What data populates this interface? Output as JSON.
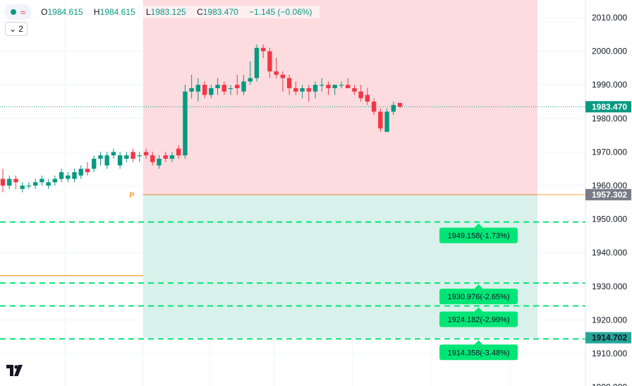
{
  "legend": {
    "o_label": "O",
    "o_value": "1984.615",
    "h_label": "H",
    "h_value": "1984.615",
    "l_label": "L",
    "l_value": "1983.125",
    "c_label": "C",
    "c_value": "1983.470",
    "change": "−1.145 (−0.06%)",
    "collapse_count": "2"
  },
  "colors": {
    "up": "#089981",
    "down": "#f23645",
    "loss_zone": "#fcdcdf",
    "profit_zone": "#d8f1ea",
    "target_line": "#00e676",
    "orange_line": "#f7a23a",
    "price_tag": "#089981",
    "grid": "#f0f3fa"
  },
  "chart_data": {
    "type": "candlestick",
    "y_axis": {
      "range": [
        1900,
        2014
      ],
      "ticks": [
        1910,
        1920,
        1930,
        1940,
        1950,
        1960,
        1970,
        1980,
        1990,
        2000,
        2010
      ],
      "tick_labels": [
        "1910.000",
        "1920.000",
        "1930.000",
        "1940.000",
        "1950.000",
        "1960.000",
        "1970.000",
        "1980.000",
        "1990.000",
        "2000.000",
        "2010.000"
      ],
      "partial_bottom_label": "1900.000",
      "partial_bottom_value": 1900
    },
    "candles": [
      [
        1962,
        1965,
        1958,
        1960
      ],
      [
        1960,
        1963,
        1959,
        1962
      ],
      [
        1962,
        1963,
        1959,
        1961
      ],
      [
        1959,
        1961,
        1958,
        1960
      ],
      [
        1960,
        1961,
        1959,
        1960
      ],
      [
        1960,
        1962,
        1959,
        1961
      ],
      [
        1961,
        1963,
        1960,
        1962
      ],
      [
        1960,
        1962,
        1959,
        1961
      ],
      [
        1961,
        1963,
        1960,
        1962
      ],
      [
        1962,
        1965,
        1961,
        1964
      ],
      [
        1962,
        1964,
        1961,
        1963
      ],
      [
        1962,
        1965,
        1961,
        1964
      ],
      [
        1963,
        1966,
        1962,
        1965
      ],
      [
        1965,
        1967,
        1963,
        1964
      ],
      [
        1965,
        1969,
        1964,
        1968
      ],
      [
        1968,
        1970,
        1966,
        1969
      ],
      [
        1966,
        1970,
        1965,
        1969
      ],
      [
        1969,
        1971,
        1968,
        1970
      ],
      [
        1966,
        1970,
        1965,
        1969
      ],
      [
        1968,
        1970,
        1967,
        1969
      ],
      [
        1970,
        1971,
        1967,
        1968
      ],
      [
        1969,
        1970,
        1967,
        1969
      ],
      [
        1970,
        1971,
        1968,
        1969
      ],
      [
        1969,
        1970,
        1966,
        1967
      ],
      [
        1966,
        1969,
        1965,
        1968
      ],
      [
        1969,
        1970,
        1967,
        1968
      ],
      [
        1968,
        1970,
        1967,
        1969
      ],
      [
        1971,
        1972,
        1968,
        1969
      ],
      [
        1969,
        1990,
        1968,
        1988
      ],
      [
        1988,
        1993,
        1986,
        1989
      ],
      [
        1988,
        1992,
        1985,
        1990
      ],
      [
        1990,
        1991,
        1986,
        1987
      ],
      [
        1987,
        1990,
        1986,
        1989
      ],
      [
        1989,
        1992,
        1987,
        1990
      ],
      [
        1990,
        1991,
        1987,
        1988
      ],
      [
        1989,
        1990,
        1987,
        1989
      ],
      [
        1990,
        1993,
        1987,
        1989
      ],
      [
        1988,
        1993,
        1987,
        1991
      ],
      [
        1991,
        1997,
        1990,
        1992
      ],
      [
        1992,
        2002,
        1991,
        2001
      ],
      [
        2001,
        2002,
        1998,
        2000
      ],
      [
        2000,
        2001,
        1992,
        1994
      ],
      [
        1994,
        1998,
        1992,
        1993
      ],
      [
        1993,
        1994,
        1988,
        1992
      ],
      [
        1992,
        1993,
        1987,
        1989
      ],
      [
        1989,
        1991,
        1987,
        1988
      ],
      [
        1988,
        1990,
        1986,
        1989
      ],
      [
        1989,
        1990,
        1985,
        1988
      ],
      [
        1988,
        1991,
        1986,
        1990
      ],
      [
        1990,
        1992,
        1988,
        1990
      ],
      [
        1990,
        1991,
        1987,
        1989
      ],
      [
        1989,
        1990,
        1987,
        1990
      ],
      [
        1990,
        1991,
        1989,
        1990
      ],
      [
        1990,
        1992,
        1989,
        1989
      ],
      [
        1989,
        1990,
        1987,
        1988
      ],
      [
        1988,
        1990,
        1985,
        1986
      ],
      [
        1987,
        1989,
        1984,
        1985
      ],
      [
        1985,
        1986,
        1981,
        1982
      ],
      [
        1982,
        1983,
        1976,
        1977
      ],
      [
        1976,
        1983,
        1976,
        1982
      ],
      [
        1982,
        1985,
        1981,
        1984
      ],
      [
        1984.615,
        1984.615,
        1983.125,
        1983.47
      ]
    ],
    "zones": {
      "entry": 1957.302,
      "stop": 2014,
      "target": 1914.702
    },
    "price_tags": [
      {
        "value": 1983.47,
        "label": "1983.470",
        "color": "#089981",
        "text_color": "#ffffff"
      },
      {
        "value": 1957.302,
        "label": "1957.302",
        "color": "#787b86",
        "text_color": "#ffffff"
      },
      {
        "value": 1914.702,
        "label": "1914.702",
        "color": "#26a69a",
        "text_color": "#131722"
      }
    ],
    "target_levels": [
      {
        "value": 1949.158,
        "label": "1949.158(-1.73%)"
      },
      {
        "value": 1930.976,
        "label": "1930.976(-2.65%)"
      },
      {
        "value": 1924.182,
        "label": "1924.182(-2.99%)"
      },
      {
        "value": 1914.358,
        "label": "1914.358(-3.48%)"
      }
    ],
    "reference_line": {
      "value": 1933.2
    },
    "pivot_marker": {
      "value": 1957.302,
      "label": "P"
    },
    "last_close": 1983.47
  }
}
